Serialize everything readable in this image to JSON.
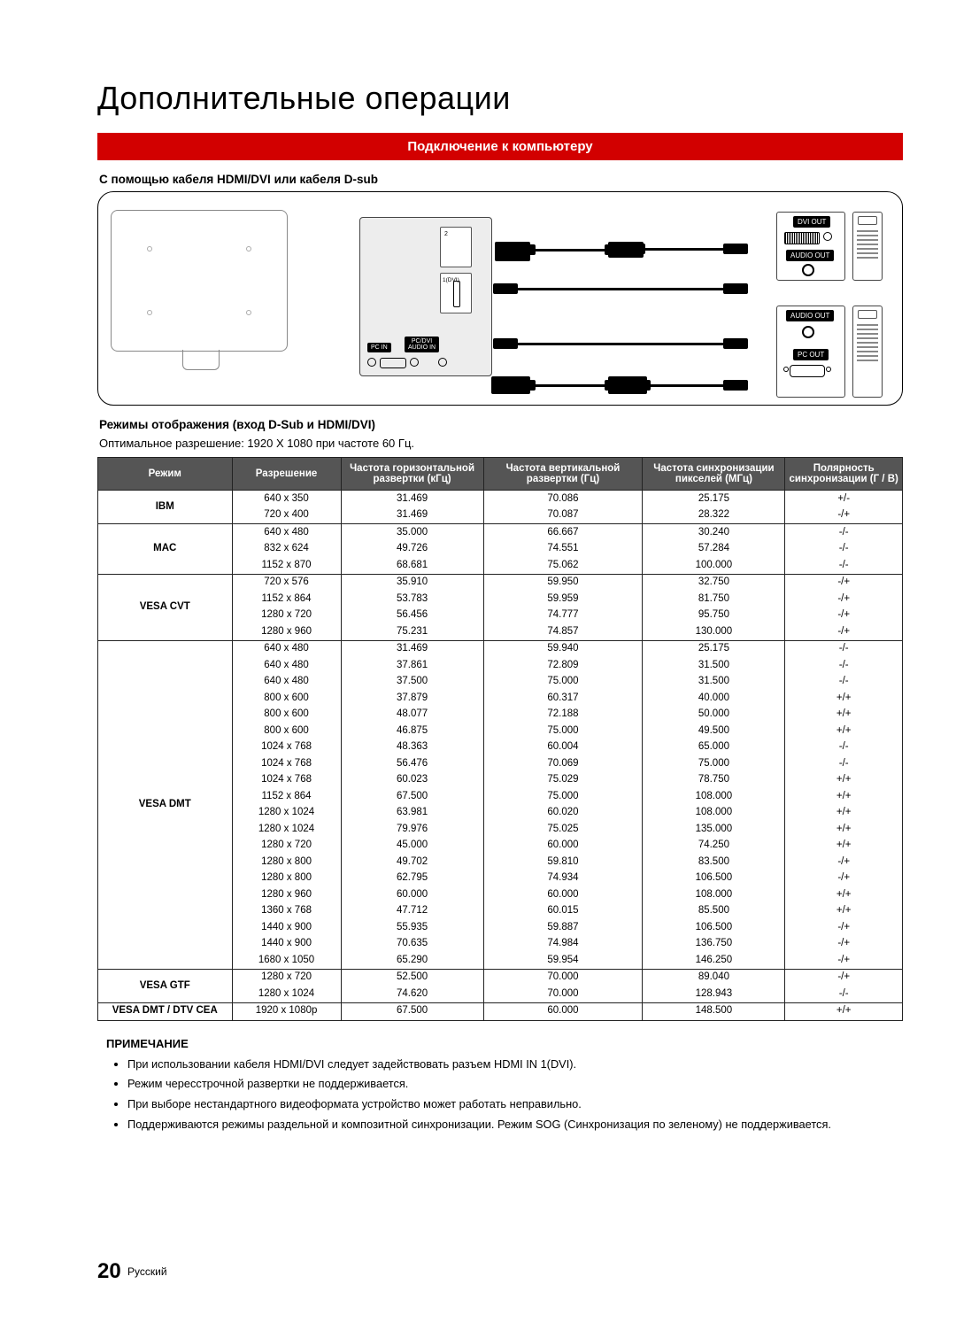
{
  "title": "Дополнительные операции",
  "banner": "Подключение к компьютеру",
  "sub1": "С помощью кабеля HDMI/DVI или кабеля D-sub",
  "diagram": {
    "pc_in": "PC IN",
    "pc_dvi_audio": "PC/DVI\nAUDIO IN",
    "dvi_out": "DVI OUT",
    "audio_out": "AUDIO OUT",
    "pc_out": "PC OUT"
  },
  "sub2": "Режимы отображения (вход D-Sub и HDMI/DVI)",
  "opt_note": "Оптимальное разрешение: 1920 X 1080 при частоте 60 Гц.",
  "table": {
    "headers": {
      "mode": "Режим",
      "res": "Разрешение",
      "hfreq": "Частота горизонтальной развертки (кГц)",
      "vfreq": "Частота вертикальной развертки (Гц)",
      "pix": "Частота синхронизации пикселей (МГц)",
      "pol": "Полярность синхронизации (Г / В)"
    },
    "groups": [
      {
        "mode": "IBM",
        "rows": [
          [
            "640 x 350",
            "31.469",
            "70.086",
            "25.175",
            "+/-"
          ],
          [
            "720 x 400",
            "31.469",
            "70.087",
            "28.322",
            "-/+"
          ]
        ]
      },
      {
        "mode": "MAC",
        "rows": [
          [
            "640 x 480",
            "35.000",
            "66.667",
            "30.240",
            "-/-"
          ],
          [
            "832 x 624",
            "49.726",
            "74.551",
            "57.284",
            "-/-"
          ],
          [
            "1152 x 870",
            "68.681",
            "75.062",
            "100.000",
            "-/-"
          ]
        ]
      },
      {
        "mode": "VESA CVT",
        "rows": [
          [
            "720 x 576",
            "35.910",
            "59.950",
            "32.750",
            "-/+"
          ],
          [
            "1152 x 864",
            "53.783",
            "59.959",
            "81.750",
            "-/+"
          ],
          [
            "1280 x 720",
            "56.456",
            "74.777",
            "95.750",
            "-/+"
          ],
          [
            "1280 x 960",
            "75.231",
            "74.857",
            "130.000",
            "-/+"
          ]
        ]
      },
      {
        "mode": "VESA DMT",
        "rows": [
          [
            "640 x 480",
            "31.469",
            "59.940",
            "25.175",
            "-/-"
          ],
          [
            "640 x 480",
            "37.861",
            "72.809",
            "31.500",
            "-/-"
          ],
          [
            "640 x 480",
            "37.500",
            "75.000",
            "31.500",
            "-/-"
          ],
          [
            "800 x 600",
            "37.879",
            "60.317",
            "40.000",
            "+/+"
          ],
          [
            "800 x 600",
            "48.077",
            "72.188",
            "50.000",
            "+/+"
          ],
          [
            "800 x 600",
            "46.875",
            "75.000",
            "49.500",
            "+/+"
          ],
          [
            "1024 x 768",
            "48.363",
            "60.004",
            "65.000",
            "-/-"
          ],
          [
            "1024 x 768",
            "56.476",
            "70.069",
            "75.000",
            "-/-"
          ],
          [
            "1024 x 768",
            "60.023",
            "75.029",
            "78.750",
            "+/+"
          ],
          [
            "1152 x 864",
            "67.500",
            "75.000",
            "108.000",
            "+/+"
          ],
          [
            "1280 x 1024",
            "63.981",
            "60.020",
            "108.000",
            "+/+"
          ],
          [
            "1280 x 1024",
            "79.976",
            "75.025",
            "135.000",
            "+/+"
          ],
          [
            "1280 x 720",
            "45.000",
            "60.000",
            "74.250",
            "+/+"
          ],
          [
            "1280 x 800",
            "49.702",
            "59.810",
            "83.500",
            "-/+"
          ],
          [
            "1280 x 800",
            "62.795",
            "74.934",
            "106.500",
            "-/+"
          ],
          [
            "1280 x 960",
            "60.000",
            "60.000",
            "108.000",
            "+/+"
          ],
          [
            "1360 x 768",
            "47.712",
            "60.015",
            "85.500",
            "+/+"
          ],
          [
            "1440 x 900",
            "55.935",
            "59.887",
            "106.500",
            "-/+"
          ],
          [
            "1440 x 900",
            "70.635",
            "74.984",
            "136.750",
            "-/+"
          ],
          [
            "1680 x 1050",
            "65.290",
            "59.954",
            "146.250",
            "-/+"
          ]
        ]
      },
      {
        "mode": "VESA GTF",
        "rows": [
          [
            "1280 x 720",
            "52.500",
            "70.000",
            "89.040",
            "-/+"
          ],
          [
            "1280 x 1024",
            "74.620",
            "70.000",
            "128.943",
            "-/-"
          ]
        ]
      },
      {
        "mode": "VESA DMT / DTV CEA",
        "rows": [
          [
            "1920 x 1080p",
            "67.500",
            "60.000",
            "148.500",
            "+/+"
          ]
        ]
      }
    ]
  },
  "notes_head": "ПРИМЕЧАНИЕ",
  "notes": [
    "При использовании кабеля HDMI/DVI следует задействовать разъем HDMI IN 1(DVI).",
    "Режим чересстрочной развертки не поддерживается.",
    "При выборе нестандартного видеоформата устройство может работать неправильно.",
    "Поддерживаются режимы раздельной и композитной синхронизации. Режим SOG (Синхронизация по зеленому) не поддерживается."
  ],
  "footer": {
    "page": "20",
    "lang": "Русский"
  }
}
